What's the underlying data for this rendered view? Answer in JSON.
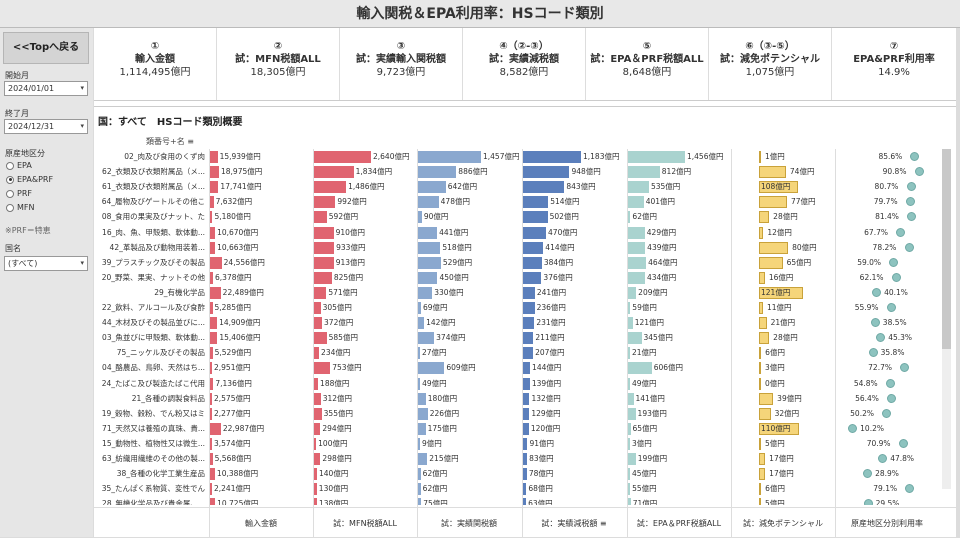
{
  "title": "輸入関税＆EPA利用率：HSコード類別",
  "sidebar": {
    "back_label": "<<Topへ戻る",
    "start_label": "開始月",
    "start_value": "2024/01/01",
    "end_label": "終了月",
    "end_value": "2024/12/31",
    "region_label": "原産地区分",
    "region_options": [
      "EPA",
      "EPA&PRF",
      "PRF",
      "MFN"
    ],
    "region_selected": "EPA&PRF",
    "note": "※PRF＝特恵",
    "country_label": "国名",
    "country_value": "(すべて)"
  },
  "kpis": [
    {
      "num": "①",
      "label": "輸入金額",
      "value": "1,114,495億円"
    },
    {
      "num": "②",
      "label": "試：MFN税額ALL",
      "value": "18,305億円"
    },
    {
      "num": "③",
      "label": "試：実績輸入関税額",
      "value": "9,723億円"
    },
    {
      "num": "④（②-③）",
      "label": "試：実績減税額",
      "value": "8,582億円"
    },
    {
      "num": "⑤",
      "label": "試：EPA＆PRF税額ALL",
      "value": "8,648億円"
    },
    {
      "num": "⑥（③-⑤）",
      "label": "試：減免ポテンシャル",
      "value": "1,075億円"
    },
    {
      "num": "⑦",
      "label": "EPA&PRF利用率",
      "value": "14.9%"
    }
  ],
  "panel": {
    "title": "国：すべて　HSコード類別概要",
    "sort_header": "類番号+名",
    "sort_icon": "sort-icon"
  },
  "colors": {
    "c1": "#e06470",
    "c2": "#e06470",
    "c3": "#8aa8cf",
    "c4": "#5b7fbc",
    "c5": "#a9d3cf",
    "c6": "#f5d57a",
    "c7": "#8dc3bf"
  },
  "rows": [
    {
      "name": "02_肉及び食用のくず肉",
      "c1": "15,939億円",
      "v1": 15939,
      "c2": "2,640億円",
      "v2": 2640,
      "c3": "1,457億円",
      "v3": 1457,
      "c4": "1,183億円",
      "v4": 1183,
      "c5": "1,456億円",
      "v5": 1456,
      "c6": "1億円",
      "v6": 1,
      "c7": "85.6%",
      "v7": 85.6
    },
    {
      "name": "62_衣類及び衣類附属品（メ...",
      "c1": "18,975億円",
      "v1": 18975,
      "c2": "1,834億円",
      "v2": 1834,
      "c3": "886億円",
      "v3": 886,
      "c4": "948億円",
      "v4": 948,
      "c5": "812億円",
      "v5": 812,
      "c6": "74億円",
      "v6": 74,
      "c7": "90.8%",
      "v7": 90.8
    },
    {
      "name": "61_衣類及び衣類附属品（メ...",
      "c1": "17,741億円",
      "v1": 17741,
      "c2": "1,486億円",
      "v2": 1486,
      "c3": "642億円",
      "v3": 642,
      "c4": "843億円",
      "v4": 843,
      "c5": "535億円",
      "v5": 535,
      "c6": "108億円",
      "v6": 108,
      "c7": "80.7%",
      "v7": 80.7
    },
    {
      "name": "64_履物及びゲートルその他こ",
      "c1": "7,632億円",
      "v1": 7632,
      "c2": "992億円",
      "v2": 992,
      "c3": "478億円",
      "v3": 478,
      "c4": "514億円",
      "v4": 514,
      "c5": "401億円",
      "v5": 401,
      "c6": "77億円",
      "v6": 77,
      "c7": "79.7%",
      "v7": 79.7
    },
    {
      "name": "08_食用の果実及びナット、た",
      "c1": "5,180億円",
      "v1": 5180,
      "c2": "592億円",
      "v2": 592,
      "c3": "90億円",
      "v3": 90,
      "c4": "502億円",
      "v4": 502,
      "c5": "62億円",
      "v5": 62,
      "c6": "28億円",
      "v6": 28,
      "c7": "81.4%",
      "v7": 81.4
    },
    {
      "name": "16_肉、魚、甲殻類、軟体動...",
      "c1": "10,670億円",
      "v1": 10670,
      "c2": "910億円",
      "v2": 910,
      "c3": "441億円",
      "v3": 441,
      "c4": "470億円",
      "v4": 470,
      "c5": "429億円",
      "v5": 429,
      "c6": "12億円",
      "v6": 12,
      "c7": "67.7%",
      "v7": 67.7
    },
    {
      "name": "42_革製品及び動物用装着...",
      "c1": "10,663億円",
      "v1": 10663,
      "c2": "933億円",
      "v2": 933,
      "c3": "518億円",
      "v3": 518,
      "c4": "414億円",
      "v4": 414,
      "c5": "439億円",
      "v5": 439,
      "c6": "80億円",
      "v6": 80,
      "c7": "78.2%",
      "v7": 78.2
    },
    {
      "name": "39_プラスチック及びその製品",
      "c1": "24,556億円",
      "v1": 24556,
      "c2": "913億円",
      "v2": 913,
      "c3": "529億円",
      "v3": 529,
      "c4": "384億円",
      "v4": 384,
      "c5": "464億円",
      "v5": 464,
      "c6": "65億円",
      "v6": 65,
      "c7": "59.0%",
      "v7": 59.0
    },
    {
      "name": "20_野菜、果実、ナットその他",
      "c1": "6,378億円",
      "v1": 6378,
      "c2": "825億円",
      "v2": 825,
      "c3": "450億円",
      "v3": 450,
      "c4": "376億円",
      "v4": 376,
      "c5": "434億円",
      "v5": 434,
      "c6": "16億円",
      "v6": 16,
      "c7": "62.1%",
      "v7": 62.1
    },
    {
      "name": "29_有機化学品",
      "c1": "22,489億円",
      "v1": 22489,
      "c2": "571億円",
      "v2": 571,
      "c3": "330億円",
      "v3": 330,
      "c4": "241億円",
      "v4": 241,
      "c5": "209億円",
      "v5": 209,
      "c6": "121億円",
      "v6": 121,
      "c7": "40.1%",
      "v7": 40.1
    },
    {
      "name": "22_飲料、アルコール及び食酢",
      "c1": "5,285億円",
      "v1": 5285,
      "c2": "305億円",
      "v2": 305,
      "c3": "69億円",
      "v3": 69,
      "c4": "236億円",
      "v4": 236,
      "c5": "59億円",
      "v5": 59,
      "c6": "11億円",
      "v6": 11,
      "c7": "55.9%",
      "v7": 55.9
    },
    {
      "name": "44_木材及びその製品並びに...",
      "c1": "14,909億円",
      "v1": 14909,
      "c2": "372億円",
      "v2": 372,
      "c3": "142億円",
      "v3": 142,
      "c4": "231億円",
      "v4": 231,
      "c5": "121億円",
      "v5": 121,
      "c6": "21億円",
      "v6": 21,
      "c7": "38.5%",
      "v7": 38.5
    },
    {
      "name": "03_魚並びに甲殻類、軟体動...",
      "c1": "15,406億円",
      "v1": 15406,
      "c2": "585億円",
      "v2": 585,
      "c3": "374億円",
      "v3": 374,
      "c4": "211億円",
      "v4": 211,
      "c5": "345億円",
      "v5": 345,
      "c6": "28億円",
      "v6": 28,
      "c7": "45.3%",
      "v7": 45.3
    },
    {
      "name": "75_ニッケル及びその製品",
      "c1": "5,529億円",
      "v1": 5529,
      "c2": "234億円",
      "v2": 234,
      "c3": "27億円",
      "v3": 27,
      "c4": "207億円",
      "v4": 207,
      "c5": "21億円",
      "v5": 21,
      "c6": "6億円",
      "v6": 6,
      "c7": "35.8%",
      "v7": 35.8
    },
    {
      "name": "04_酪農品、鳥卵、天然はち...",
      "c1": "2,951億円",
      "v1": 2951,
      "c2": "753億円",
      "v2": 753,
      "c3": "609億円",
      "v3": 609,
      "c4": "144億円",
      "v4": 144,
      "c5": "606億円",
      "v5": 606,
      "c6": "3億円",
      "v6": 3,
      "c7": "72.7%",
      "v7": 72.7
    },
    {
      "name": "24_たばこ及び製造たばこ代用",
      "c1": "7,136億円",
      "v1": 7136,
      "c2": "188億円",
      "v2": 188,
      "c3": "49億円",
      "v3": 49,
      "c4": "139億円",
      "v4": 139,
      "c5": "49億円",
      "v5": 49,
      "c6": "0億円",
      "v6": 0,
      "c7": "54.8%",
      "v7": 54.8
    },
    {
      "name": "21_各種の調製食料品",
      "c1": "2,575億円",
      "v1": 2575,
      "c2": "312億円",
      "v2": 312,
      "c3": "180億円",
      "v3": 180,
      "c4": "132億円",
      "v4": 132,
      "c5": "141億円",
      "v5": 141,
      "c6": "39億円",
      "v6": 39,
      "c7": "56.4%",
      "v7": 56.4
    },
    {
      "name": "19_穀物、穀粉、でん粉又はミ",
      "c1": "2,277億円",
      "v1": 2277,
      "c2": "355億円",
      "v2": 355,
      "c3": "226億円",
      "v3": 226,
      "c4": "129億円",
      "v4": 129,
      "c5": "193億円",
      "v5": 193,
      "c6": "32億円",
      "v6": 32,
      "c7": "50.2%",
      "v7": 50.2
    },
    {
      "name": "71_天然又は養殖の真珠、貴...",
      "c1": "22,987億円",
      "v1": 22987,
      "c2": "294億円",
      "v2": 294,
      "c3": "175億円",
      "v3": 175,
      "c4": "120億円",
      "v4": 120,
      "c5": "65億円",
      "v5": 65,
      "c6": "110億円",
      "v6": 110,
      "c7": "10.2%",
      "v7": 10.2
    },
    {
      "name": "15_動物性、植物性又は微生...",
      "c1": "3,574億円",
      "v1": 3574,
      "c2": "100億円",
      "v2": 100,
      "c3": "9億円",
      "v3": 9,
      "c4": "91億円",
      "v4": 91,
      "c5": "3億円",
      "v5": 3,
      "c6": "5億円",
      "v6": 5,
      "c7": "70.9%",
      "v7": 70.9
    },
    {
      "name": "63_紡織用繊維のその他の製...",
      "c1": "5,568億円",
      "v1": 5568,
      "c2": "298億円",
      "v2": 298,
      "c3": "215億円",
      "v3": 215,
      "c4": "83億円",
      "v4": 83,
      "c5": "199億円",
      "v5": 199,
      "c6": "17億円",
      "v6": 17,
      "c7": "47.8%",
      "v7": 47.8
    },
    {
      "name": "38_各種の化学工業生産品",
      "c1": "10,388億円",
      "v1": 10388,
      "c2": "140億円",
      "v2": 140,
      "c3": "62億円",
      "v3": 62,
      "c4": "78億円",
      "v4": 78,
      "c5": "45億円",
      "v5": 45,
      "c6": "17億円",
      "v6": 17,
      "c7": "28.9%",
      "v7": 28.9
    },
    {
      "name": "35_たんぱく系物質、変性でん",
      "c1": "2,241億円",
      "v1": 2241,
      "c2": "130億円",
      "v2": 130,
      "c3": "62億円",
      "v3": 62,
      "c4": "68億円",
      "v4": 68,
      "c5": "55億円",
      "v5": 55,
      "c6": "6億円",
      "v6": 6,
      "c7": "79.1%",
      "v7": 79.1
    },
    {
      "name": "28_無機化学品及び貴金属、...",
      "c1": "10,725億円",
      "v1": 10725,
      "c2": "138億円",
      "v2": 138,
      "c3": "75億円",
      "v3": 75,
      "c4": "63億円",
      "v4": 63,
      "c5": "71億円",
      "v5": 71,
      "c6": "5億円",
      "v6": 5,
      "c7": "29.5%",
      "v7": 29.5
    }
  ],
  "col_headers": [
    "輸入金額",
    "試：MFN税額ALL",
    "試：実績関税額",
    "試：実績減税額",
    "試：EPA＆PRF税額ALL",
    "試：減免ポテンシャル",
    "原産地区分別利用率"
  ]
}
